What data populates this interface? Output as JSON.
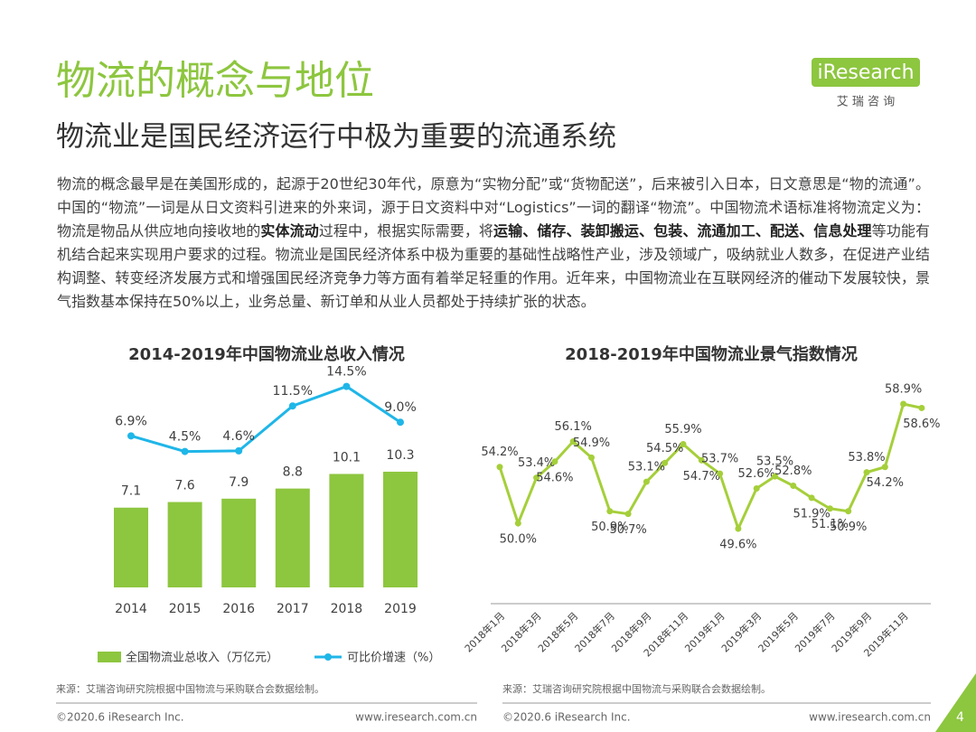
{
  "header": {
    "title": "物流的概念与地位",
    "subtitle": "物流业是国民经济运行中极为重要的流通系统"
  },
  "logo": {
    "name": "iResearch",
    "tagline": "艾 瑞 咨 询"
  },
  "body": {
    "paragraph": [
      {
        "text": "物流的概念最早是在美国形成的，起源于20世纪30年代，原意为“实物分配”或“货物配送”，后来被引入日本，日文意思是“物的流通”。中国的“物流”一词是从日文资料引进来的外来词，源于日文资料中对“Logistics”一词的翻译“物流”。中国物流术语标准将物流定义为：物流是物品从供应地向接收地的",
        "bold": false
      },
      {
        "text": "实体流动",
        "bold": true
      },
      {
        "text": "过程中，根据实际需要，将",
        "bold": false
      },
      {
        "text": "运输、储存、装卸搬运、包装、流通加工、配送、信息处理",
        "bold": true
      },
      {
        "text": "等功能有机结合起来实现用户要求的过程。物流业是国民经济体系中极为重要的基础性战略性产业，涉及领域广，吸纳就业人数多，在促进产业结构调整、转变经济发展方式和增强国民经济竞争力等方面有着举足轻重的作用。近年来，中国物流业在互联网经济的催动下发展较快，景气指数基本保持在50%以上，业务总量、新订单和从业人员都处于持续扩张的状态。",
        "bold": false
      }
    ]
  },
  "chart_data": [
    {
      "type": "bar-line",
      "title": "2014-2019年中国物流业总收入情况",
      "categories": [
        "2014",
        "2015",
        "2016",
        "2017",
        "2018",
        "2019"
      ],
      "series": [
        {
          "name": "全国物流业总收入（万亿元）",
          "type": "bar",
          "color": "#8dc63f",
          "values": [
            7.1,
            7.6,
            7.9,
            8.8,
            10.1,
            10.3
          ]
        },
        {
          "name": "可比价增速（%）",
          "type": "line",
          "color": "#1fb6e8",
          "values": [
            6.9,
            4.5,
            4.6,
            11.5,
            14.5,
            9.0
          ],
          "value_labels": [
            "6.9%",
            "4.5%",
            "4.6%",
            "11.5%",
            "14.5%",
            "9.0%"
          ]
        }
      ],
      "source": "来源：艾瑞咨询研究院根据中国物流与采购联合会数据绘制。"
    },
    {
      "type": "line",
      "title": "2018-2019年中国物流业景气指数情况",
      "categories": [
        "2018年1月",
        null,
        "2018年3月",
        null,
        "2018年5月",
        null,
        "2018年7月",
        null,
        "2018年9月",
        null,
        "2018年11月",
        null,
        "2019年1月",
        null,
        "2019年3月",
        null,
        "2019年5月",
        null,
        "2019年7月",
        null,
        "2019年9月",
        null,
        "2019年11月",
        null
      ],
      "series": [
        {
          "color": "#a5cf3a",
          "values": [
            54.2,
            50.0,
            53.4,
            54.6,
            56.1,
            54.9,
            50.9,
            50.7,
            53.1,
            54.5,
            55.9,
            54.7,
            53.7,
            49.6,
            52.6,
            53.5,
            52.8,
            51.9,
            51.1,
            50.9,
            53.8,
            54.2,
            58.9,
            58.6
          ],
          "value_labels": [
            "54.2%",
            "50.0%",
            "53.4%",
            "54.6%",
            "56.1%",
            "54.9%",
            "50.9%",
            "50.7%",
            "53.1%",
            "54.5%",
            "55.9%",
            "54.7%",
            "53.7%",
            "49.6%",
            "52.6%",
            "53.5%",
            "52.8%",
            "51.9%",
            "51.1%",
            "50.9%",
            "53.8%",
            "54.2%",
            "58.9%",
            "58.6%"
          ]
        }
      ],
      "source": "来源：艾瑞咨询研究院根据中国物流与采购联合会数据绘制。"
    }
  ],
  "footer": {
    "copyright_left": "©2020.6 iResearch Inc.",
    "url_left": "www.iresearch.com.cn",
    "copyright_right": "©2020.6 iResearch Inc.",
    "url_right": "www.iresearch.com.cn",
    "page": "4"
  }
}
